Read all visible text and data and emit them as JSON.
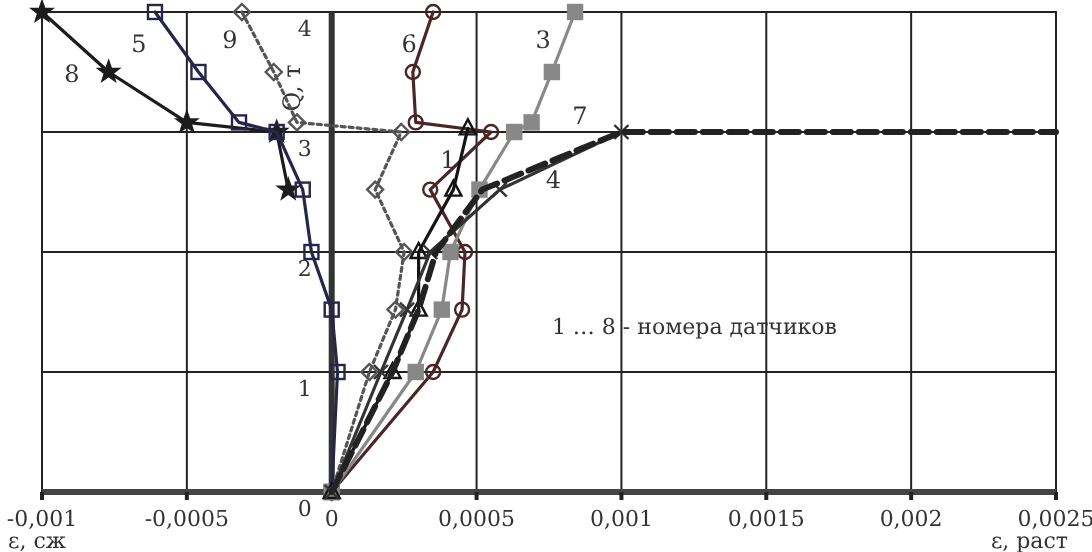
{
  "chart_data": {
    "type": "line",
    "ylabel": "Q, т",
    "xlabel": "ε, раст",
    "annotations": [
      "1 … 8 - номера датчиков",
      "ε, сж"
    ],
    "xlim": [
      -0.001,
      0.0025
    ],
    "xticks": [
      {
        "value": -0.001,
        "label": "-0,001"
      },
      {
        "value": -0.0005,
        "label": "-0,0005"
      },
      0,
      {
        "value": 0.0005,
        "label": "0,0005"
      },
      {
        "value": 0.001,
        "label": "0,001"
      },
      {
        "value": 0.0015,
        "label": "0,0015"
      },
      {
        "value": 0.002,
        "label": "0,002"
      },
      {
        "value": 0.0025,
        "label": "0,0025"
      }
    ],
    "ylim": [
      0,
      4
    ],
    "yticks": [
      0,
      1,
      2,
      3,
      4
    ],
    "grid": true,
    "series": [
      {
        "name": "8",
        "color": "#1c1c1c",
        "marker": "star",
        "x": [
          -0.00015,
          -0.00019,
          -0.0005,
          -0.00077,
          -0.001
        ],
        "values": [
          2.52,
          3,
          3.08,
          3.5,
          4
        ]
      },
      {
        "name": "5",
        "color": "#26264a",
        "marker": "square",
        "x": [
          0,
          2e-05,
          0,
          -7e-05,
          -0.0001,
          -0.00019,
          -0.00032,
          -0.00046,
          -0.00061
        ],
        "values": [
          0,
          1,
          1.52,
          2,
          2.52,
          3,
          3.08,
          3.5,
          4
        ]
      },
      {
        "name": "9",
        "color": "#555555",
        "marker": "diamond",
        "line_style": "dotted",
        "x": [
          0,
          0.00013,
          0.00022,
          0.00025,
          0.00015,
          0.00024,
          -0.00012,
          -0.0002,
          -0.00031
        ],
        "values": [
          0,
          1,
          1.52,
          2,
          2.52,
          3,
          3.08,
          3.5,
          4
        ]
      },
      {
        "name": "6",
        "color": "#4a2626",
        "marker": "circle",
        "x": [
          0,
          0.00035,
          0.00045,
          0.00046,
          0.00034,
          0.00055,
          0.00029,
          0.00028,
          0.00035
        ],
        "values": [
          0,
          1,
          1.52,
          2,
          2.52,
          3,
          3.08,
          3.5,
          4
        ]
      },
      {
        "name": "3",
        "color": "#888888",
        "marker": "square",
        "x": [
          0,
          0.00029,
          0.00038,
          0.00041,
          0.00051,
          0.00063,
          0.00069,
          0.00076,
          0.00084
        ],
        "values": [
          0,
          1,
          1.52,
          2,
          2.52,
          3,
          3.08,
          3.5,
          4
        ]
      },
      {
        "name": "1",
        "color": "#141414",
        "marker": "triangle",
        "x": [
          0,
          0.00021,
          0.0003,
          0.0003,
          0.00042,
          0.00047
        ],
        "values": [
          0,
          1,
          1.52,
          2,
          2.52,
          3.03
        ]
      },
      {
        "name": "4",
        "color": "#333333",
        "marker": "cross",
        "x": [
          0,
          0.00017,
          0.00026,
          0.00034,
          0.00058,
          0.001
        ],
        "values": [
          0,
          1,
          1.52,
          2,
          2.52,
          3
        ]
      },
      {
        "name": "7",
        "color": "#222222",
        "marker": "none",
        "line_style": "dashed",
        "x": [
          0,
          0.00021,
          0.0003,
          0.00036,
          0.00052,
          0.001,
          0.0025
        ],
        "values": [
          0,
          1,
          1.52,
          2,
          2.52,
          3,
          3
        ]
      }
    ]
  }
}
